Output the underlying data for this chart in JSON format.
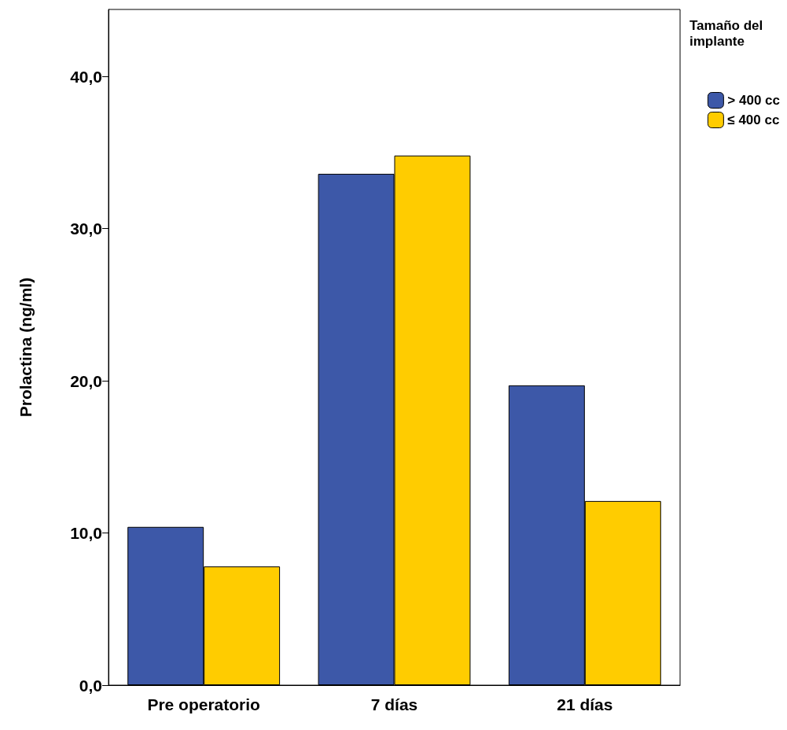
{
  "chart_data": {
    "type": "bar",
    "ylabel": "Prolactina (ng/ml)",
    "legend_title": "Tamaño del implante",
    "categories": [
      "Pre operatorio",
      "7 días",
      "21 días"
    ],
    "series": [
      {
        "name": "> 400 cc",
        "color": "#3d58a8",
        "values": [
          10.4,
          33.6,
          19.7
        ]
      },
      {
        "name": "≤ 400 cc",
        "color": "#ffcc00",
        "values": [
          7.8,
          34.8,
          12.1
        ]
      }
    ],
    "ylim": [
      0,
      44.4
    ],
    "yticks": [
      {
        "value": 0,
        "label": "0,0"
      },
      {
        "value": 10,
        "label": "10,0"
      },
      {
        "value": 20,
        "label": "20,0"
      },
      {
        "value": 30,
        "label": "30,0"
      },
      {
        "value": 40,
        "label": "40,0"
      }
    ],
    "grid": false,
    "legend": "top right"
  }
}
